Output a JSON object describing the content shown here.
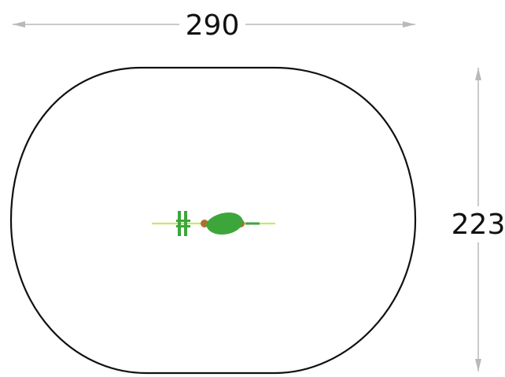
{
  "dimensions": {
    "width_label": "290",
    "height_label": "223"
  },
  "colors": {
    "outline": "#111111",
    "dimension_line": "#b9b9b9",
    "equipment_green": "#3da63b",
    "equipment_light_green": "#b6e45a",
    "equipment_brown": "#b26c2d"
  },
  "icons": {
    "equipment": "rocking-spring-equipment-icon"
  }
}
